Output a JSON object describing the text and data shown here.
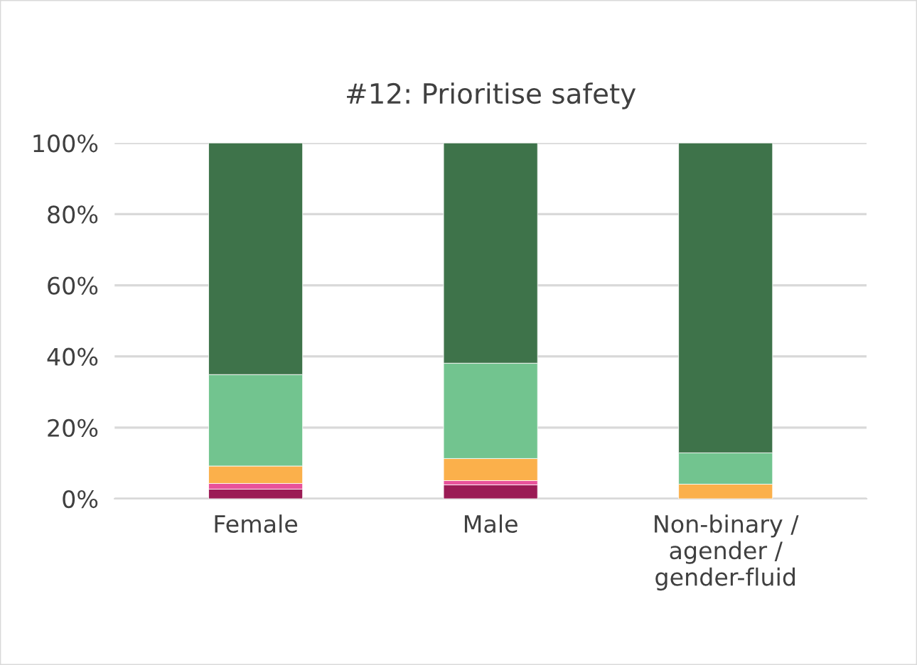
{
  "chart_data": {
    "type": "bar",
    "title": "#12: Prioritise safety",
    "stacked": true,
    "categories": [
      "Female",
      "Male",
      "Non-binary /\nagender /\ngender-fluid"
    ],
    "series": [
      {
        "color": "#9b1b55",
        "values": [
          2.7,
          3.9,
          0
        ]
      },
      {
        "color": "#e8529a",
        "values": [
          1.6,
          1.2,
          0
        ]
      },
      {
        "color": "#fbb04b",
        "values": [
          4.9,
          6.2,
          4.1
        ]
      },
      {
        "color": "#72c48f",
        "values": [
          25.7,
          26.8,
          8.8
        ]
      },
      {
        "color": "#3e734a",
        "values": [
          65.1,
          61.9,
          87.1
        ]
      }
    ],
    "ylim": [
      0,
      100
    ],
    "yticks": [
      {
        "value": 0,
        "label": "0%"
      },
      {
        "value": 20,
        "label": "20%"
      },
      {
        "value": 40,
        "label": "40%"
      },
      {
        "value": 60,
        "label": "60%"
      },
      {
        "value": 80,
        "label": "80%"
      },
      {
        "value": 100,
        "label": "100%"
      }
    ],
    "grid": "y",
    "legend": false
  }
}
